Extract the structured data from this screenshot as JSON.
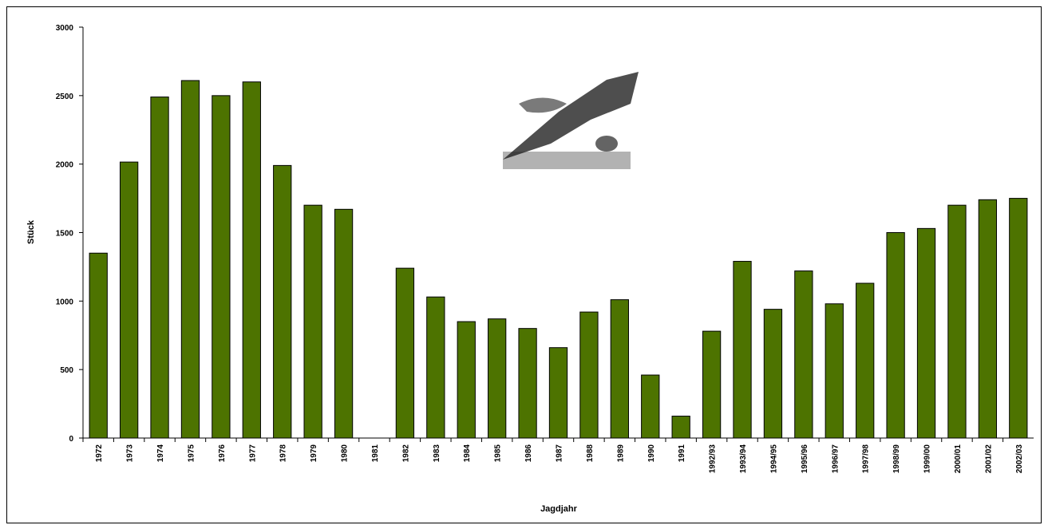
{
  "chart_data": {
    "type": "bar",
    "x_label": "Jagdjahr",
    "y_label": "Stück",
    "categories": [
      "1972",
      "1973",
      "1974",
      "1975",
      "1976",
      "1977",
      "1978",
      "1979",
      "1980",
      "1981",
      "1982",
      "1983",
      "1984",
      "1985",
      "1986",
      "1987",
      "1988",
      "1989",
      "1990",
      "1991",
      "1992/93",
      "1993/94",
      "1994/95",
      "1995/96",
      "1996/97",
      "1997/98",
      "1998/99",
      "1999/00",
      "2000/01",
      "2001/02",
      "2002/03"
    ],
    "values": [
      1350,
      2015,
      2490,
      2610,
      2500,
      2600,
      1990,
      1700,
      1670,
      null,
      1240,
      1030,
      850,
      870,
      800,
      660,
      920,
      1010,
      460,
      160,
      780,
      1290,
      940,
      1220,
      980,
      1130,
      1500,
      1530,
      1700,
      1740,
      1750
    ],
    "color": "#4d7300",
    "ylim": [
      0,
      3000
    ],
    "yticks": [
      0,
      500,
      1000,
      1500,
      2000,
      2500,
      3000
    ],
    "grid": false
  }
}
